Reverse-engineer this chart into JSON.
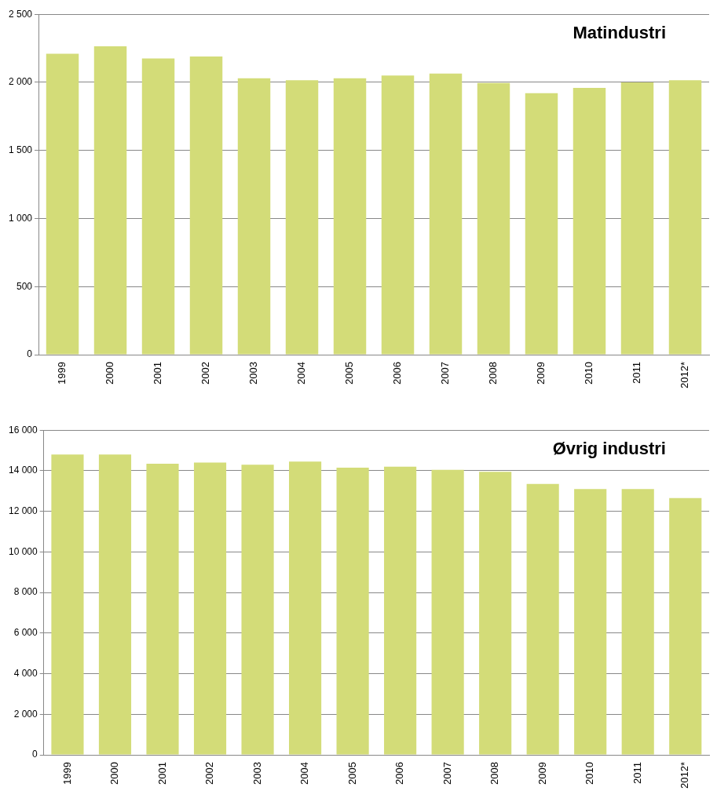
{
  "chart_data": [
    {
      "type": "bar",
      "title": "Matindustri",
      "categories": [
        "1999",
        "2000",
        "2001",
        "2002",
        "2003",
        "2004",
        "2005",
        "2006",
        "2007",
        "2008",
        "2009",
        "2010",
        "2011",
        "2012*"
      ],
      "values": [
        2210,
        2265,
        2175,
        2190,
        2030,
        2015,
        2030,
        2050,
        2065,
        1995,
        1920,
        1960,
        2000,
        2015
      ],
      "color": "#d3dc78",
      "ylim": [
        0,
        2500
      ],
      "yticks": [
        0,
        {
          "value": 500,
          "label": "500"
        },
        {
          "value": 1000,
          "label": "1 000"
        },
        {
          "value": 1500,
          "label": "1 500"
        },
        {
          "value": 2000,
          "label": "2 000"
        },
        {
          "value": 2500,
          "label": "2 500"
        }
      ],
      "grid": "y"
    },
    {
      "type": "bar",
      "title": "Øvrig industri",
      "categories": [
        "1999",
        "2000",
        "2001",
        "2002",
        "2003",
        "2004",
        "2005",
        "2006",
        "2007",
        "2008",
        "2009",
        "2010",
        "2011",
        "2012*"
      ],
      "values": [
        14800,
        14800,
        14350,
        14400,
        14300,
        14450,
        14150,
        14200,
        14050,
        13950,
        13350,
        13100,
        13100,
        12650
      ],
      "color": "#d3dc78",
      "ylim": [
        0,
        16000
      ],
      "yticks": [
        0,
        {
          "value": 2000,
          "label": "2 000"
        },
        {
          "value": 4000,
          "label": "4 000"
        },
        {
          "value": 6000,
          "label": "6 000"
        },
        {
          "value": 8000,
          "label": "8 000"
        },
        {
          "value": 10000,
          "label": "10 000"
        },
        {
          "value": 12000,
          "label": "12 000"
        },
        {
          "value": 14000,
          "label": "14 000"
        },
        {
          "value": 16000,
          "label": "16 000"
        }
      ],
      "grid": "y"
    }
  ]
}
